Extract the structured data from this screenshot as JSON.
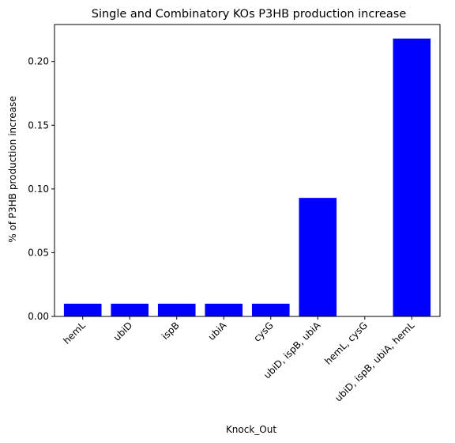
{
  "chart_data": {
    "type": "bar",
    "title": "Single and Combinatory KOs P3HB production increase",
    "xlabel": "Knock_Out",
    "ylabel": "% of P3HB production increase",
    "categories": [
      "hemL",
      "ubiD",
      "ispB",
      "ubiA",
      "cysG",
      "ubiD, ispB, ubiA",
      "hemL, cysG",
      "ubiD, ispB, ubiA, hemL"
    ],
    "values": [
      0.01,
      0.01,
      0.01,
      0.01,
      0.01,
      0.093,
      0.0,
      0.218
    ],
    "ylim": [
      0,
      0.229
    ],
    "yticks": [
      0.0,
      0.05,
      0.1,
      0.15,
      0.2
    ],
    "ytick_labels": [
      "0.00",
      "0.05",
      "0.10",
      "0.15",
      "0.20"
    ],
    "bar_color": "#0000ff",
    "grid": false,
    "legend": "none"
  }
}
